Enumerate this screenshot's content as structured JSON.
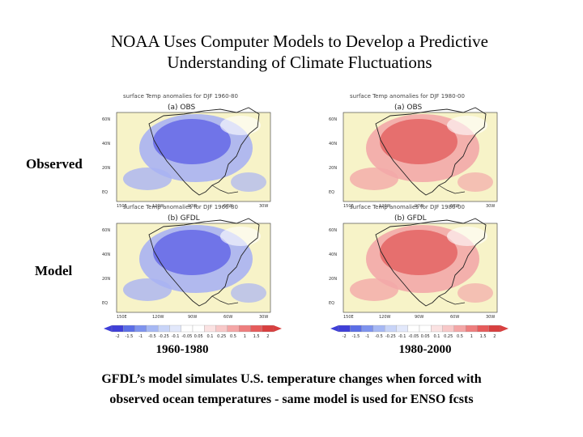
{
  "title_line1": "NOAA Uses Computer Models to Develop a Predictive",
  "title_line2": "Understanding of Climate Fluctuations",
  "row_labels": {
    "observed": "Observed",
    "model": "Model"
  },
  "panels": {
    "header": "surface Temp anomalies for DJF 1960-80",
    "header_right": "surface Temp anomalies for DJF 1980-00",
    "obs_tag": "(a) OBS",
    "model_tag": "(b) GFDL",
    "lat_labels": [
      "60N",
      "40N",
      "20N",
      "EQ"
    ],
    "lon_labels": [
      "150E",
      "120W",
      "90W",
      "60W",
      "30W"
    ]
  },
  "colorbar_ticks": [
    "-2",
    "-1.5",
    "-1",
    "-0.5",
    "-0.25",
    "-0.1",
    "-0.05",
    "0.05",
    "0.1",
    "0.25",
    "0.5",
    "1",
    "1.5",
    "2"
  ],
  "periods": {
    "left": "1960-1980",
    "right": "1980-2000"
  },
  "caption_line1": "GFDL’s model simulates U.S. temperature changes when forced with",
  "caption_line2": "observed ocean temperatures - same model is used for ENSO fcsts",
  "colors": {
    "cool_deep": "#5b5ee6",
    "cool_light": "#a9b3f2",
    "neutral": "#f7f3c8",
    "warm_light": "#f2a9a9",
    "warm_deep": "#e25a5a"
  }
}
